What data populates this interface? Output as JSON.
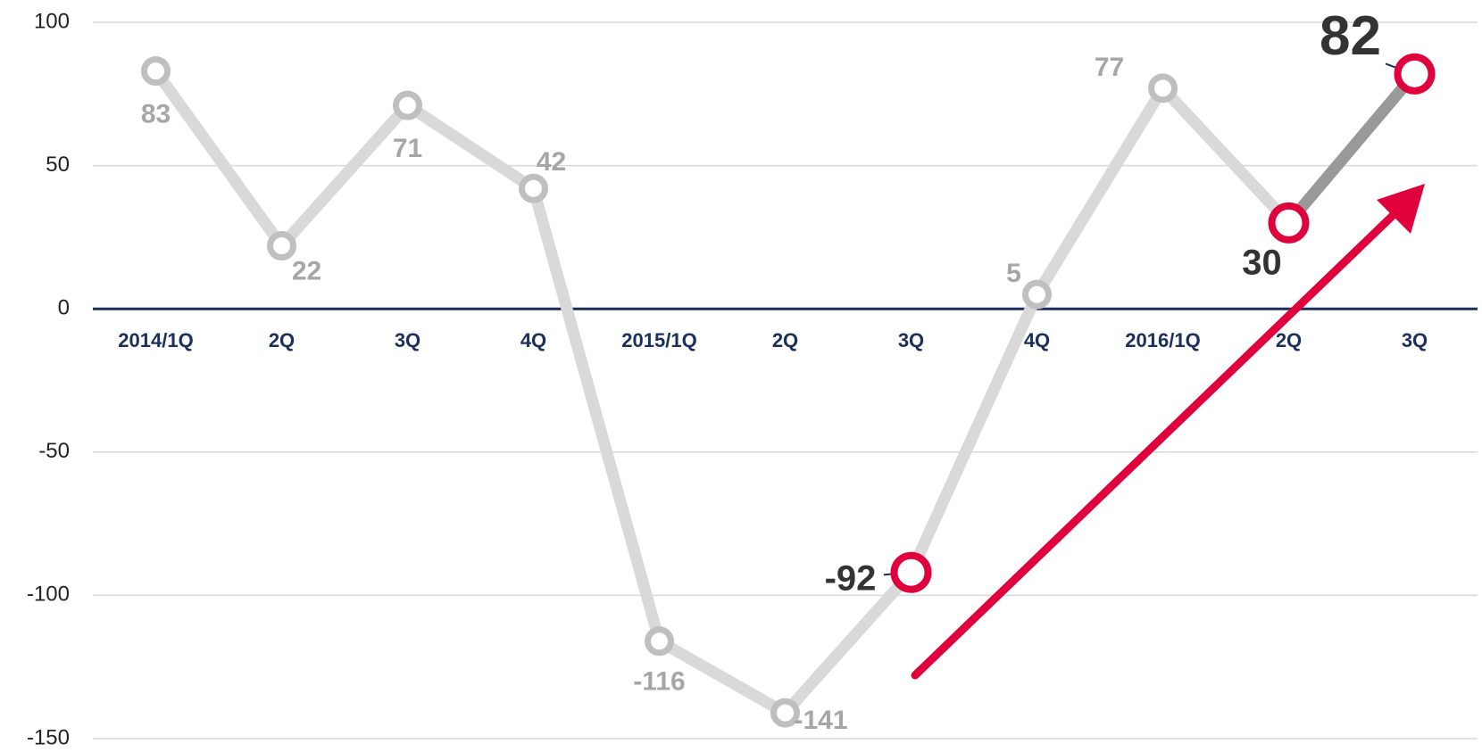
{
  "chart_data": {
    "type": "line",
    "categories": [
      "2014/1Q",
      "2Q",
      "3Q",
      "4Q",
      "2015/1Q",
      "2Q",
      "3Q",
      "4Q",
      "2016/1Q",
      "2Q",
      "3Q"
    ],
    "series": [
      {
        "color": "#d9d9d9",
        "values": [
          83,
          22,
          71,
          42,
          -116,
          -141,
          -92,
          5,
          77,
          30,
          82
        ],
        "marker_colors": [
          "#bfbfbf",
          "#bfbfbf",
          "#bfbfbf",
          "#bfbfbf",
          "#bfbfbf",
          "#bfbfbf",
          "#e0003c",
          "#bfbfbf",
          "#bfbfbf",
          "#e0003c",
          "#e0003c"
        ],
        "segment_colors": [
          "#d9d9d9",
          "#d9d9d9",
          "#d9d9d9",
          "#d9d9d9",
          "#d9d9d9",
          "#d9d9d9",
          "#d9d9d9",
          "#d9d9d9",
          "#d9d9d9",
          "#999999"
        ]
      }
    ],
    "ylim": [
      -150,
      100
    ],
    "yticks": [
      -150,
      -100,
      -50,
      0,
      50,
      100
    ],
    "grid": true,
    "zero_line_color": "#1c2f5a",
    "arrow_color": "#e0003c"
  }
}
